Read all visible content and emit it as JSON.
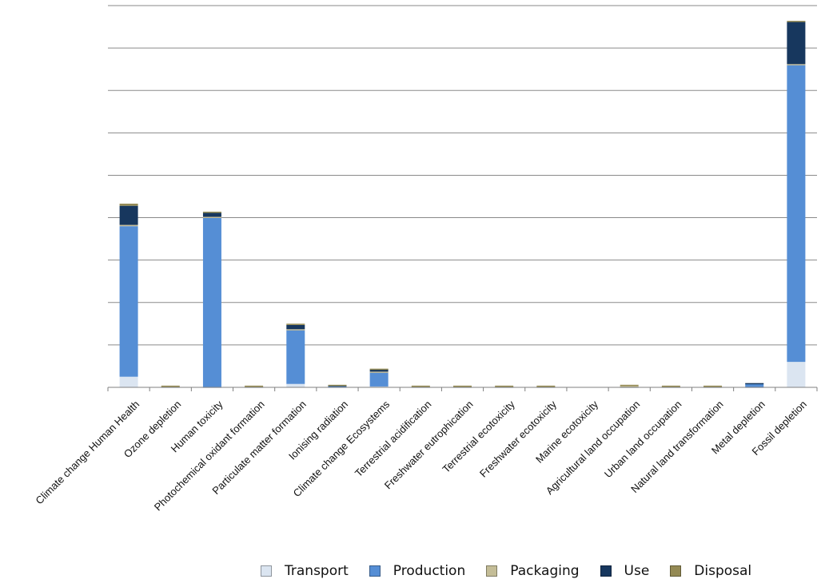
{
  "chart_data": {
    "type": "bar",
    "stacked": true,
    "title": "",
    "xlabel": "",
    "ylabel": "",
    "ylim": [
      0,
      9
    ],
    "grid": true,
    "legend_position": "bottom-right",
    "categories": [
      "Climate change Human  Health",
      "Ozone depletion",
      "Human toxicity",
      "Photochemical oxidant formation",
      "Particulate matter formation",
      "Ionising radiation",
      "Climate change Ecosystems",
      "Terrestrial acidification",
      "Freshwater eutrophication",
      "Terrestrial ecotoxicity",
      "Freshwater ecotoxicity",
      "Marine ecotoxicity",
      "Agricultural land occupation",
      "Urban land occupation",
      "Natural land transformation",
      "Metal depletion",
      "Fossil depletion"
    ],
    "series": [
      {
        "name": "Transport",
        "color": "#dbe5f1",
        "values": [
          0.25,
          0.01,
          0.01,
          0.01,
          0.08,
          0.01,
          0.02,
          0.01,
          0.01,
          0.01,
          0.01,
          0.0,
          0.01,
          0.01,
          0.01,
          0.01,
          0.6
        ]
      },
      {
        "name": "Production",
        "color": "#558ed5",
        "values": [
          3.55,
          0.0,
          4.0,
          0.0,
          1.27,
          0.03,
          0.34,
          0.0,
          0.0,
          0.0,
          0.0,
          0.0,
          0.01,
          0.0,
          0.0,
          0.08,
          7.0
        ]
      },
      {
        "name": "Packaging",
        "color": "#c4bd97",
        "values": [
          0.03,
          0.01,
          0.01,
          0.01,
          0.02,
          0.0,
          0.01,
          0.01,
          0.01,
          0.01,
          0.01,
          0.0,
          0.01,
          0.01,
          0.01,
          0.0,
          0.02
        ]
      },
      {
        "name": "Use",
        "color": "#17375e",
        "values": [
          0.45,
          0.0,
          0.1,
          0.0,
          0.1,
          0.01,
          0.05,
          0.0,
          0.0,
          0.0,
          0.0,
          0.0,
          0.0,
          0.0,
          0.0,
          0.01,
          1.0
        ]
      },
      {
        "name": "Disposal",
        "color": "#948a54",
        "values": [
          0.05,
          0.02,
          0.02,
          0.02,
          0.03,
          0.01,
          0.02,
          0.02,
          0.02,
          0.02,
          0.02,
          0.0,
          0.03,
          0.02,
          0.02,
          0.0,
          0.02
        ]
      }
    ]
  }
}
